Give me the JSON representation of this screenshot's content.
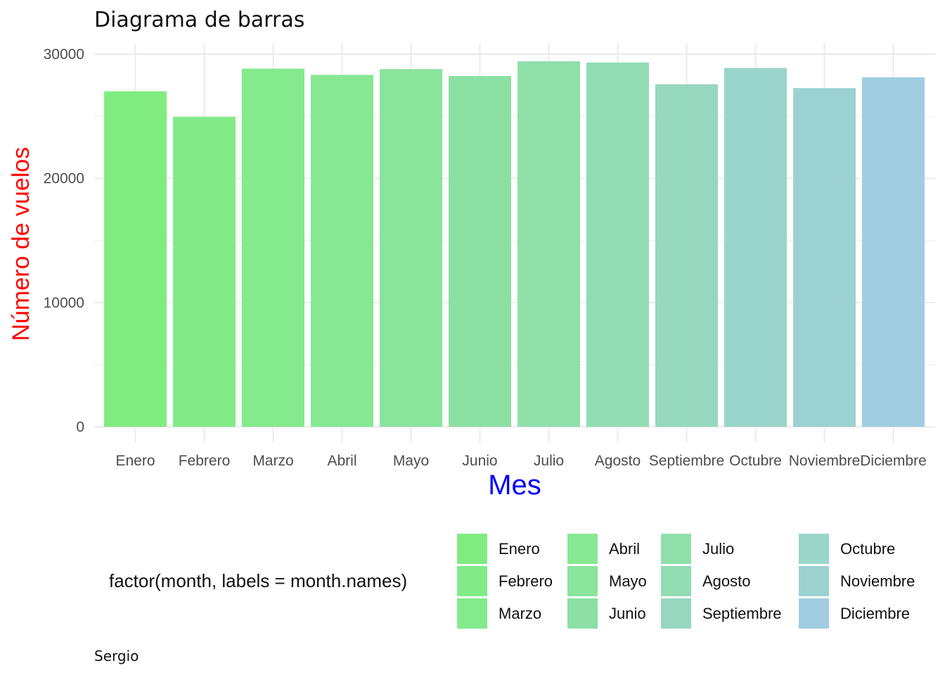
{
  "chart_data": {
    "type": "bar",
    "title": "Diagrama de barras",
    "xlabel": "Mes",
    "ylabel": "Número de vuelos",
    "caption": "Sergio",
    "xlabel_color": "#0000ff",
    "ylabel_color": "#ff0000",
    "categories": [
      "Enero",
      "Febrero",
      "Marzo",
      "Abril",
      "Mayo",
      "Junio",
      "Julio",
      "Agosto",
      "Septiembre",
      "Octubre",
      "Noviembre",
      "Diciembre"
    ],
    "values": [
      27004,
      24951,
      28834,
      28330,
      28796,
      28243,
      29425,
      29327,
      27574,
      28889,
      27268,
      28135
    ],
    "colors": [
      "#80ec80",
      "#82eb88",
      "#84ea8d",
      "#86e893",
      "#89e49c",
      "#8ce0a4",
      "#8fdfab",
      "#92dcb3",
      "#96d8bf",
      "#99d5c9",
      "#9bd2d1",
      "#a0cde1"
    ],
    "ylim": [
      0,
      30000
    ],
    "yticks": [
      0,
      10000,
      20000,
      30000
    ],
    "ytick_labels": [
      "0",
      "10000",
      "20000",
      "30000"
    ],
    "grid": true,
    "legend": {
      "title": "factor(month, labels = month.names)",
      "placement": "bottom",
      "columns": 4
    }
  }
}
